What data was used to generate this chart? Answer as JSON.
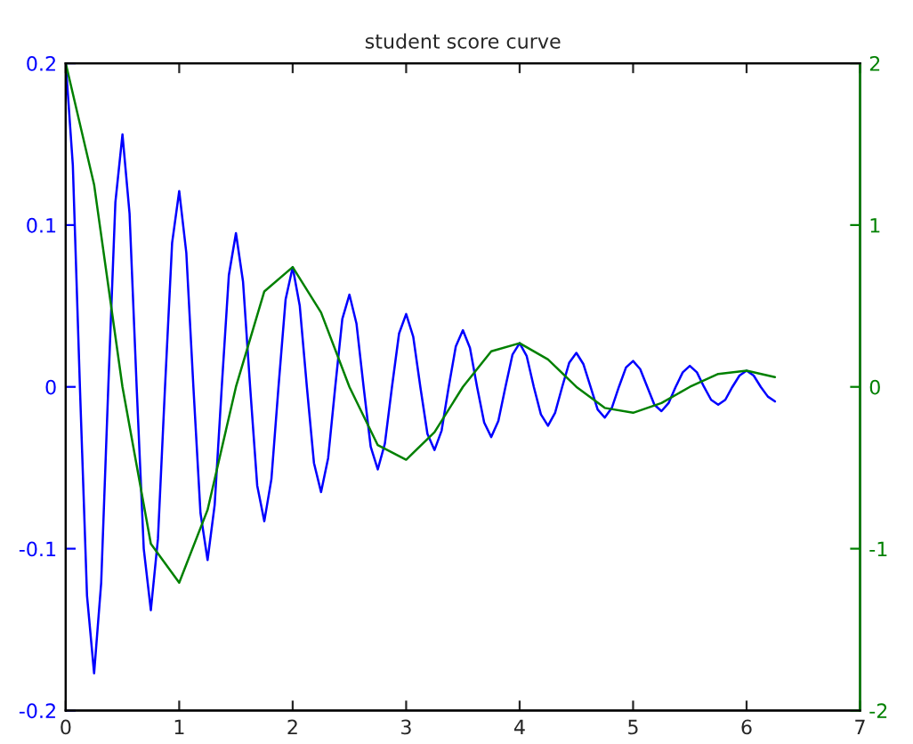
{
  "chart_data": {
    "type": "line",
    "title": "student score curve",
    "xlim": [
      0,
      7
    ],
    "xticks": [
      0,
      1,
      2,
      3,
      4,
      5,
      6,
      7
    ],
    "ylim": [
      -0.2,
      0.2
    ],
    "yticks": [
      {
        "value": -0.2,
        "label": "-0.2"
      },
      {
        "value": -0.1,
        "label": "-0.1"
      },
      0,
      0.1,
      0.2
    ],
    "y2lim": [
      -2,
      2
    ],
    "y2ticks": [
      {
        "value": -2,
        "label": "-2"
      },
      {
        "value": -1,
        "label": "-1"
      },
      0,
      1,
      2
    ],
    "grid": false,
    "legend": false,
    "marker": "none",
    "line_style": "solid",
    "series": [
      {
        "color": "#0000ff",
        "axis": "y",
        "x": [
          0,
          0.0625,
          0.125,
          0.1875,
          0.25,
          0.3125,
          0.375,
          0.4375,
          0.5,
          0.5625,
          0.625,
          0.6875,
          0.75,
          0.8125,
          0.875,
          0.9375,
          1,
          1.0625,
          1.125,
          1.1875,
          1.25,
          1.3125,
          1.375,
          1.4375,
          1.5,
          1.5625,
          1.625,
          1.6875,
          1.75,
          1.8125,
          1.875,
          1.9375,
          2,
          2.0625,
          2.125,
          2.1875,
          2.25,
          2.3125,
          2.375,
          2.4375,
          2.5,
          2.5625,
          2.625,
          2.6875,
          2.75,
          2.8125,
          2.875,
          2.9375,
          3,
          3.0625,
          3.125,
          3.1875,
          3.25,
          3.3125,
          3.375,
          3.4375,
          3.5,
          3.5625,
          3.625,
          3.6875,
          3.75,
          3.8125,
          3.875,
          3.9375,
          4,
          4.0625,
          4.125,
          4.1875,
          4.25,
          4.3125,
          4.375,
          4.4375,
          4.5,
          4.5625,
          4.625,
          4.6875,
          4.75,
          4.8125,
          4.875,
          4.9375,
          5,
          5.0625,
          5.125,
          5.1875,
          5.25,
          5.3125,
          5.375,
          5.4375,
          5.5,
          5.5625,
          5.625,
          5.6875,
          5.75,
          5.8125,
          5.875,
          5.9375,
          6,
          6.0625,
          6.125,
          6.1875,
          6.25
        ],
        "values": [
          0.2,
          0.137,
          0,
          -0.129,
          -0.177,
          -0.121,
          0,
          0.114,
          0.156,
          0.107,
          0,
          -0.1,
          -0.138,
          -0.094,
          0,
          0.089,
          0.121,
          0.083,
          0,
          -0.078,
          -0.107,
          -0.073,
          0,
          0.069,
          0.095,
          0.065,
          0,
          -0.061,
          -0.083,
          -0.057,
          0,
          0.054,
          0.074,
          0.05,
          0,
          -0.047,
          -0.065,
          -0.044,
          0,
          0.042,
          0.057,
          0.039,
          0,
          -0.037,
          -0.051,
          -0.035,
          0,
          0.033,
          0.045,
          0.031,
          0,
          -0.029,
          -0.039,
          -0.027,
          0,
          0.025,
          0.035,
          0.024,
          0,
          -0.022,
          -0.031,
          -0.021,
          0,
          0.02,
          0.027,
          0.019,
          0,
          -0.017,
          -0.024,
          -0.016,
          0,
          0.015,
          0.021,
          0.014,
          0,
          -0.014,
          -0.019,
          -0.013,
          0,
          0.012,
          0.016,
          0.011,
          0,
          -0.011,
          -0.015,
          -0.01,
          0,
          0.009,
          0.013,
          0.009,
          0,
          -0.008,
          -0.011,
          -0.008,
          0,
          0.007,
          0.01,
          0.007,
          0,
          -0.006,
          -0.009
        ]
      },
      {
        "color": "#008000",
        "axis": "y2",
        "x": [
          0,
          0.25,
          0.5,
          0.75,
          1,
          1.25,
          1.5,
          1.75,
          2,
          2.25,
          2.5,
          2.75,
          3,
          3.25,
          3.5,
          3.75,
          4,
          4.25,
          4.5,
          4.75,
          5,
          5.25,
          5.5,
          5.75,
          6,
          6.25
        ],
        "values": [
          2,
          1.25,
          0,
          -0.97,
          -1.21,
          -0.76,
          0,
          0.59,
          0.74,
          0.46,
          0,
          -0.36,
          -0.45,
          -0.28,
          0,
          0.22,
          0.27,
          0.17,
          0,
          -0.13,
          -0.16,
          -0.1,
          0,
          0.08,
          0.1,
          0.06
        ]
      }
    ]
  }
}
